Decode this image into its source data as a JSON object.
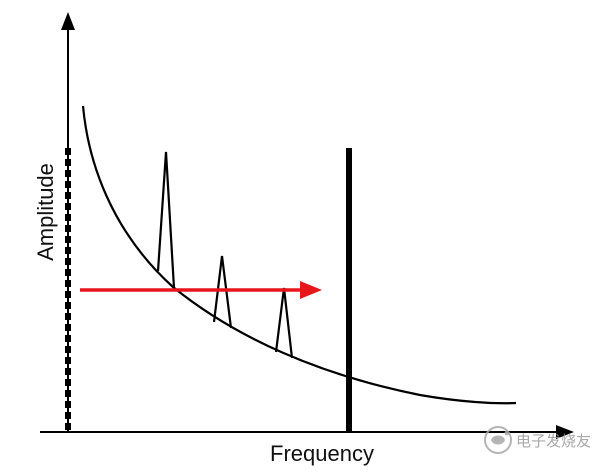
{
  "axes": {
    "y_label": "Amplitude",
    "x_label": "Frequency"
  },
  "watermark": {
    "text": "电子发烧友",
    "icon": "electronic-enthusiast-logo-icon"
  },
  "colors": {
    "lines": "#000000",
    "arrow": "#e8151b",
    "watermark": "#9a9a9a"
  }
}
